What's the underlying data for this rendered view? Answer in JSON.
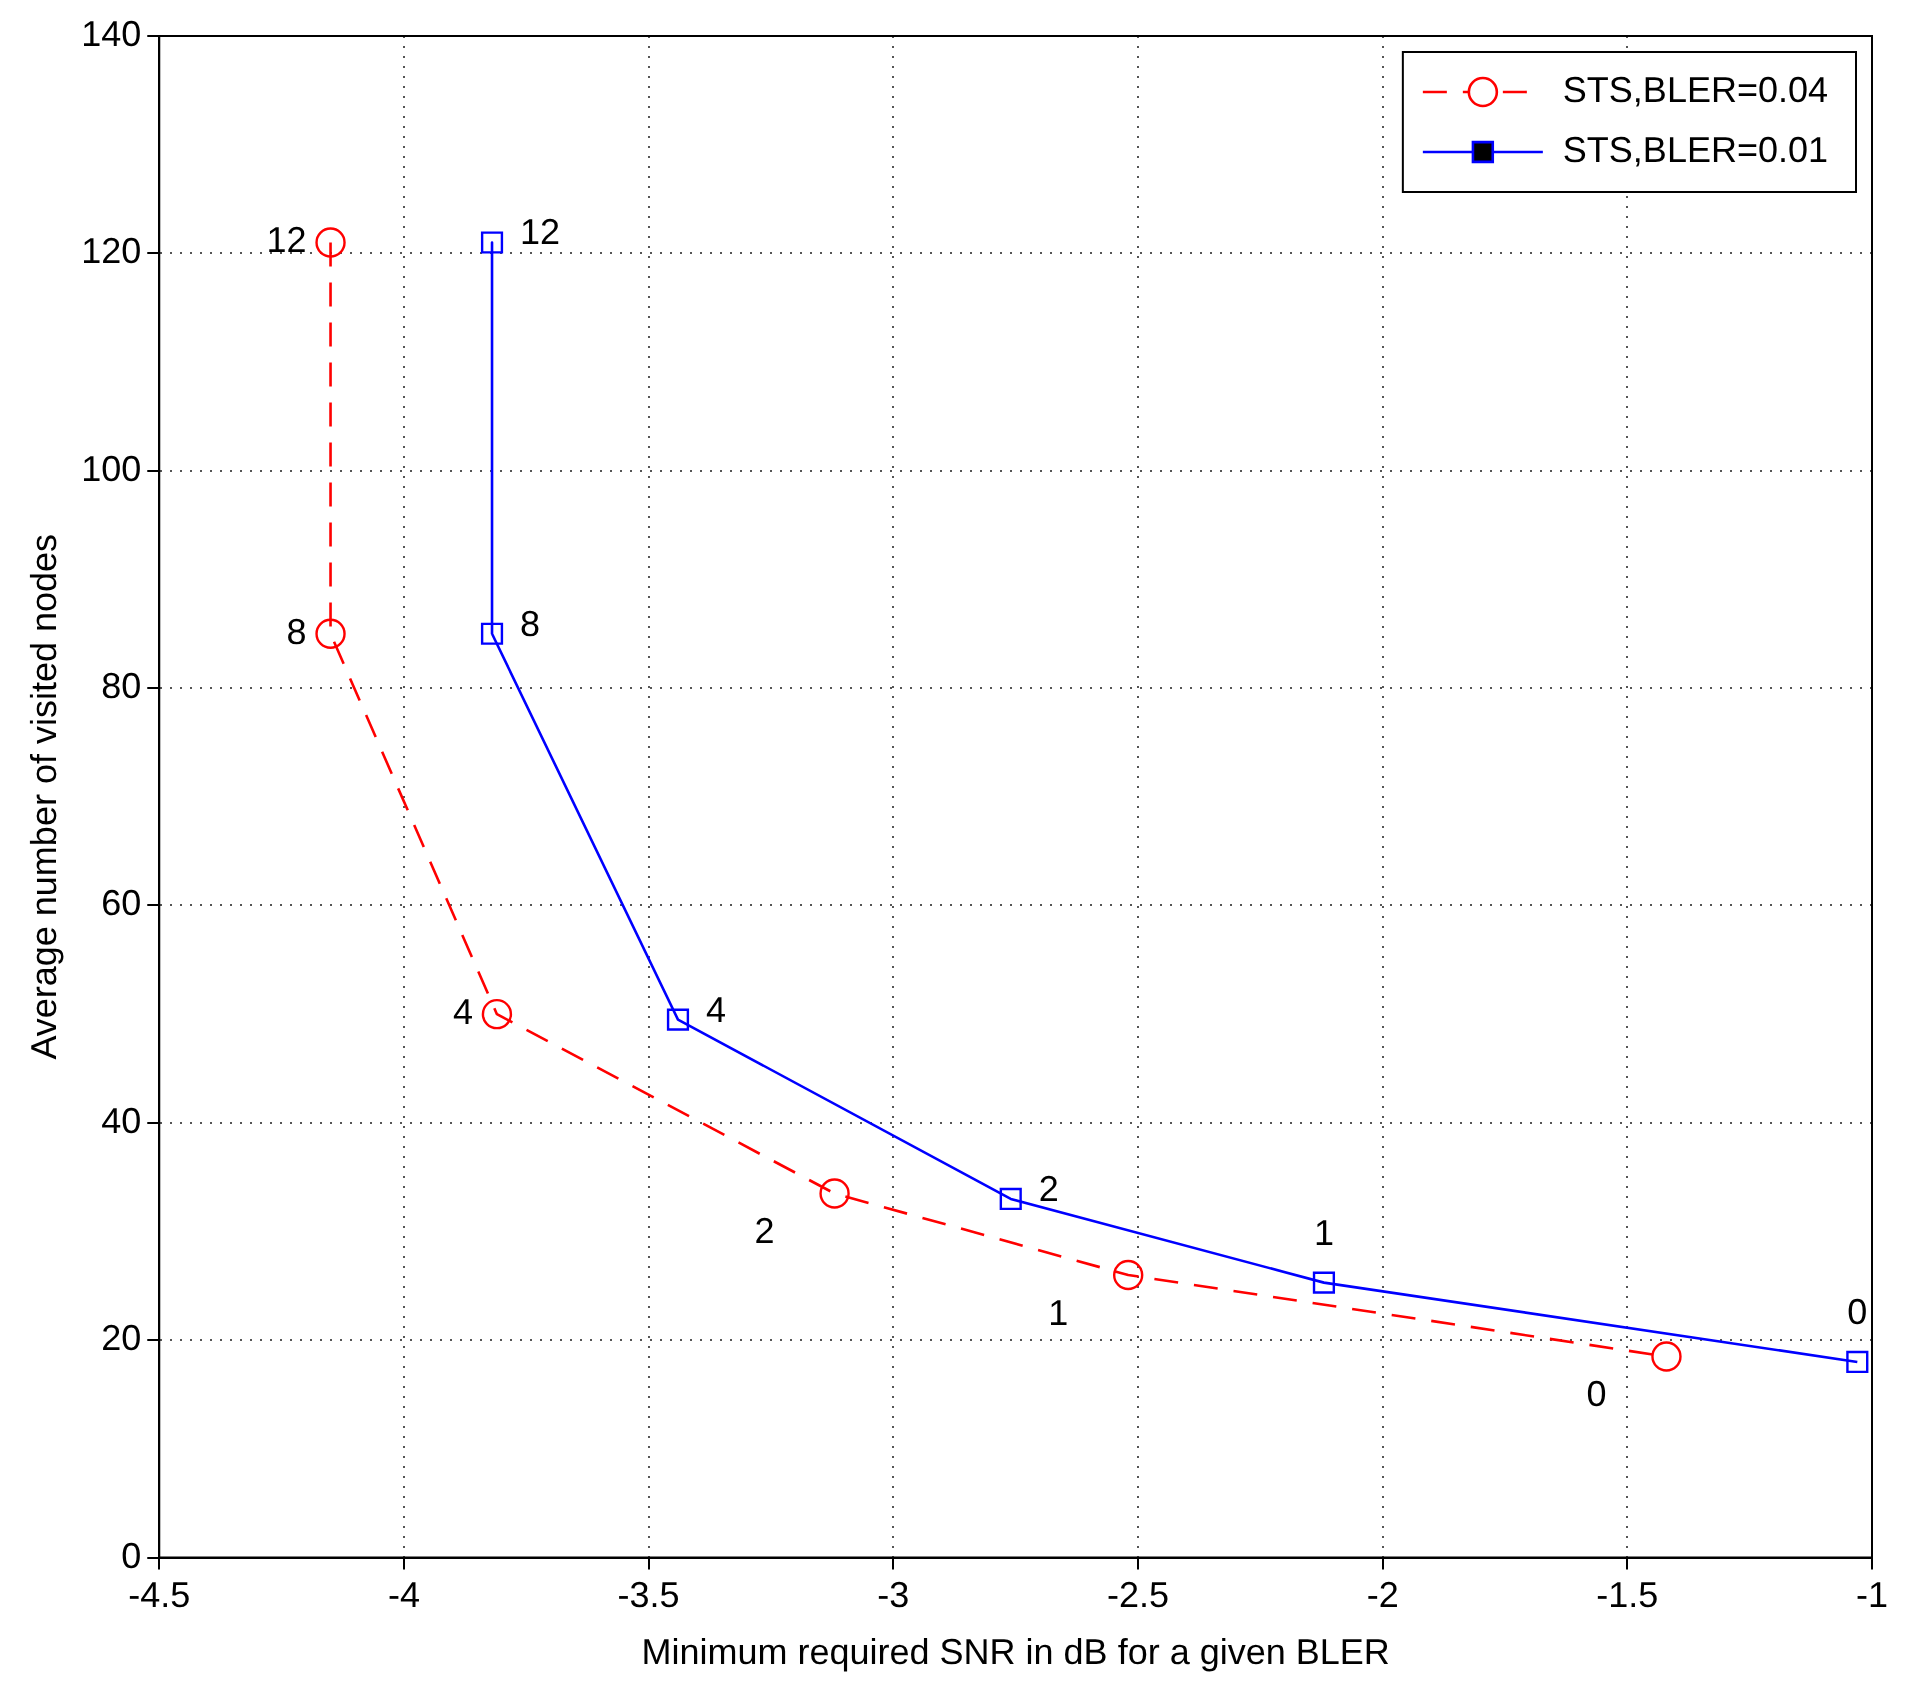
{
  "chart_data": {
    "type": "line",
    "xlabel": "Minimum required SNR in dB for a given BLER",
    "ylabel": "Average number of visited nodes",
    "xlim": [
      -4.5,
      -1
    ],
    "xticks": [
      -4.5,
      -4,
      -3.5,
      -3,
      -2.5,
      -2,
      -1.5,
      -1
    ],
    "ylim": [
      0,
      140
    ],
    "yticks": [
      0,
      20,
      40,
      60,
      80,
      100,
      120,
      140
    ],
    "grid": true,
    "legend": "top right",
    "series": [
      {
        "name": "STS,BLER=0.04",
        "color": "#ff0000",
        "marker": "circle",
        "line_style": "dashed",
        "x": [
          -4.15,
          -4.15,
          -3.81,
          -3.12,
          -2.52,
          -1.42
        ],
        "values": [
          121,
          85,
          50,
          33.5,
          26,
          18.5
        ]
      },
      {
        "name": "STS,BLER=0.01",
        "color": "#0000ff",
        "marker": "square",
        "line_style": "solid",
        "x": [
          -3.82,
          -3.82,
          -3.44,
          -2.76,
          -2.12,
          -1.03
        ],
        "values": [
          121,
          85,
          49.5,
          33,
          25.3,
          18
        ]
      }
    ],
    "annotations": [
      {
        "text": "12",
        "x": -4.15,
        "y": 121
      },
      {
        "text": "8",
        "x": -4.15,
        "y": 85
      },
      {
        "text": "4",
        "x": -3.81,
        "y": 50
      },
      {
        "text": "2",
        "x": -3.12,
        "y": 33.5
      },
      {
        "text": "1",
        "x": -2.52,
        "y": 26
      },
      {
        "text": "0",
        "x": -1.42,
        "y": 18.5
      },
      {
        "text": "12",
        "x": -3.82,
        "y": 121
      },
      {
        "text": "8",
        "x": -3.82,
        "y": 85
      },
      {
        "text": "4",
        "x": -3.44,
        "y": 49.5
      },
      {
        "text": "2",
        "x": -2.76,
        "y": 33
      },
      {
        "text": "1",
        "x": -2.12,
        "y": 25.3
      },
      {
        "text": "0",
        "x": -1.03,
        "y": 18
      }
    ]
  }
}
